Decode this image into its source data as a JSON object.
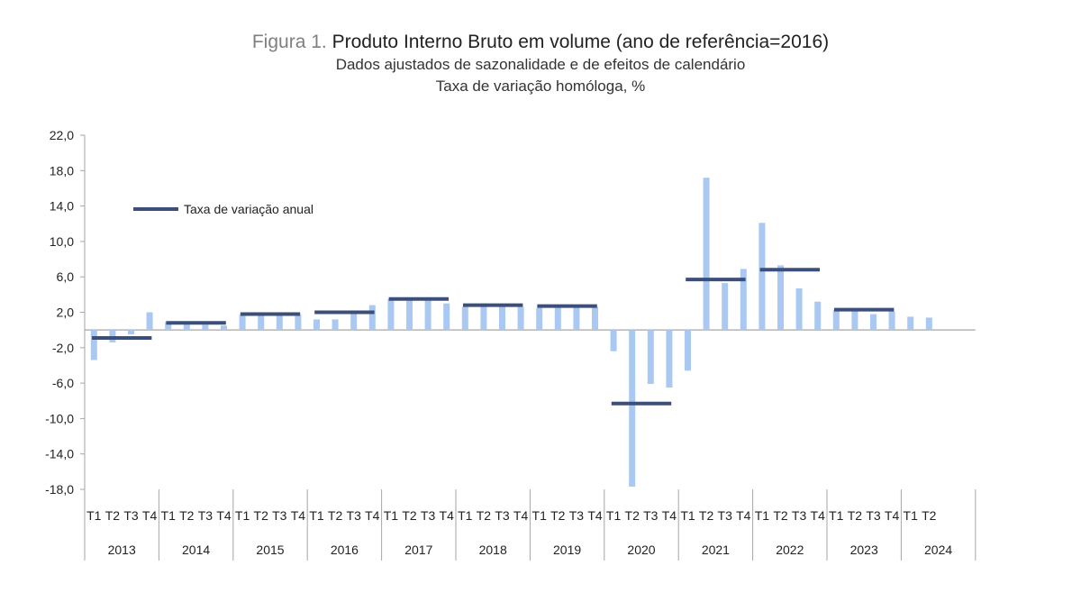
{
  "figure": {
    "prefix": "Figura 1.",
    "title": "Produto Interno Bruto em volume (ano de referência=2016)",
    "subtitle1": "Dados ajustados de sazonalidade e de efeitos de calendário",
    "subtitle2": "Taxa de variação homóloga, %"
  },
  "colors": {
    "bar": "#a9c8f2",
    "annual": "#3b4f7a",
    "axis": "#a6a6a6"
  },
  "chart_data": {
    "type": "bar",
    "ylim": [
      -18,
      22
    ],
    "yticks": [
      "22,0",
      "18,0",
      "14,0",
      "10,0",
      "6,0",
      "2,0",
      "-2,0",
      "-6,0",
      "-10,0",
      "-14,0",
      "-18,0"
    ],
    "ytick_values": [
      22,
      18,
      14,
      10,
      6,
      2,
      -2,
      -6,
      -10,
      -14,
      -18
    ],
    "years": [
      "2013",
      "2014",
      "2015",
      "2016",
      "2017",
      "2018",
      "2019",
      "2020",
      "2021",
      "2022",
      "2023",
      "2024"
    ],
    "quarter_labels": [
      "T1",
      "T2",
      "T3",
      "T4"
    ],
    "series": [
      {
        "type": "bar",
        "values": [
          -3.4,
          -1.4,
          -0.5,
          2.0,
          0.9,
          0.8,
          0.6,
          0.5,
          1.7,
          1.6,
          1.6,
          1.7,
          1.2,
          1.2,
          2.1,
          2.8,
          3.5,
          3.6,
          3.4,
          3.0,
          2.6,
          3.0,
          2.7,
          2.6,
          2.5,
          2.6,
          2.6,
          2.6,
          -2.4,
          -17.7,
          -6.1,
          -6.5,
          -4.6,
          17.2,
          5.3,
          6.9,
          12.1,
          7.3,
          4.7,
          3.2,
          2.3,
          2.3,
          1.8,
          2.1,
          1.5,
          1.4
        ]
      },
      {
        "name": "Taxa de variação anual",
        "type": "annual",
        "values": [
          -0.9,
          0.8,
          1.8,
          2.0,
          3.5,
          2.8,
          2.7,
          -8.3,
          5.7,
          6.8,
          2.3
        ]
      }
    ],
    "legend": {
      "label": "Taxa de variação anual",
      "position": "top-left"
    }
  }
}
